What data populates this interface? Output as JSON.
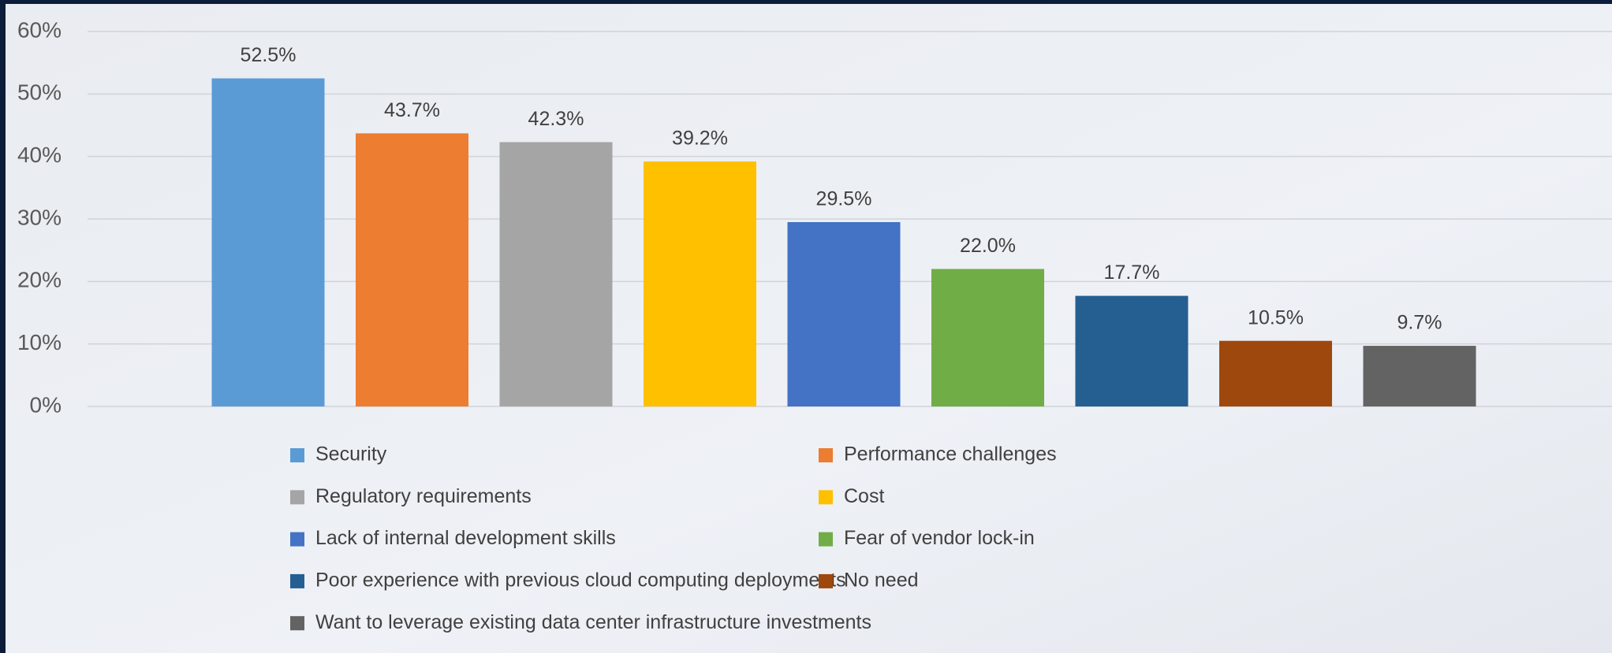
{
  "chart_data": {
    "type": "bar",
    "series": [
      {
        "name": "Security",
        "color": "#5b9bd5",
        "values": [
          52.5
        ],
        "value_labels": [
          "52.5%"
        ]
      },
      {
        "name": "Performance challenges",
        "color": "#ed7d31",
        "values": [
          43.7
        ],
        "value_labels": [
          "43.7%"
        ]
      },
      {
        "name": "Regulatory requirements",
        "color": "#a5a5a5",
        "values": [
          42.3
        ],
        "value_labels": [
          "42.3%"
        ]
      },
      {
        "name": "Cost",
        "color": "#ffc000",
        "values": [
          39.2
        ],
        "value_labels": [
          "39.2%"
        ]
      },
      {
        "name": "Lack of internal development skills",
        "color": "#4472c4",
        "values": [
          29.5
        ],
        "value_labels": [
          "29.5%"
        ]
      },
      {
        "name": "Fear of vendor lock-in",
        "color": "#70ad47",
        "values": [
          22.0
        ],
        "value_labels": [
          "22.0%"
        ]
      },
      {
        "name": "Poor experience with previous cloud computing deployments",
        "color": "#255e91",
        "values": [
          17.7
        ],
        "value_labels": [
          "17.7%"
        ]
      },
      {
        "name": "No need",
        "color": "#9e480e",
        "values": [
          10.5
        ],
        "value_labels": [
          "10.5%"
        ]
      },
      {
        "name": "Want to leverage existing data center infrastructure investments",
        "color": "#636363",
        "values": [
          9.7
        ],
        "value_labels": [
          "9.7%"
        ]
      }
    ],
    "ylim": [
      0,
      60
    ],
    "yticks": [
      {
        "value": 0,
        "label": "0%"
      },
      {
        "value": 10,
        "label": "10%"
      },
      {
        "value": 20,
        "label": "20%"
      },
      {
        "value": 30,
        "label": "30%"
      },
      {
        "value": 40,
        "label": "40%"
      },
      {
        "value": 50,
        "label": "50%"
      },
      {
        "value": 60,
        "label": "60%"
      }
    ],
    "grid": true
  }
}
